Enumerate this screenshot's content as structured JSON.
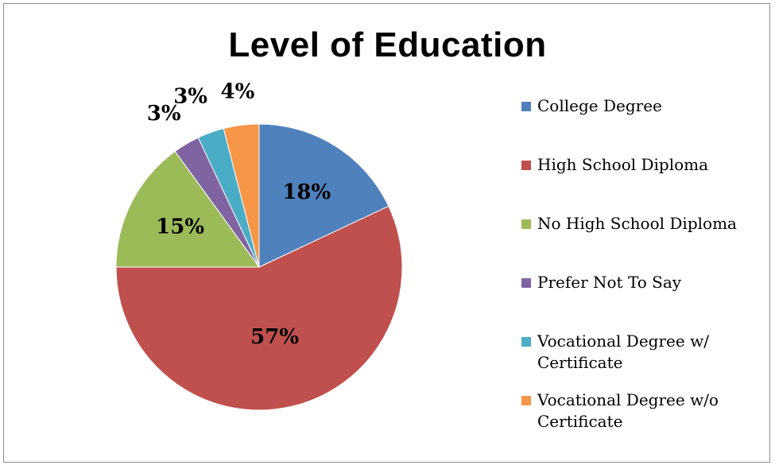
{
  "chart_data": {
    "type": "pie",
    "title": "Level of Education",
    "categories": [
      "College Degree",
      "High School Diploma",
      "No High School Diploma",
      "Prefer Not To Say",
      "Vocational Degree w/ Certificate",
      "Vocational Degree w/o Certificate"
    ],
    "values": [
      18,
      57,
      15,
      3,
      3,
      4
    ],
    "data_labels": [
      "18%",
      "57%",
      "15%",
      "3%",
      "3%",
      "4%"
    ],
    "colors": [
      "#4F81BD",
      "#C0504D",
      "#9BBB59",
      "#8064A2",
      "#4BACC6",
      "#F79646"
    ],
    "legend_position": "right"
  },
  "legend": {
    "items": [
      "College Degree",
      "High School Diploma",
      "No High School Diploma",
      "Prefer Not To Say",
      "Vocational Degree w/\nCertificate",
      "Vocational Degree w/o\nCertificate"
    ]
  }
}
